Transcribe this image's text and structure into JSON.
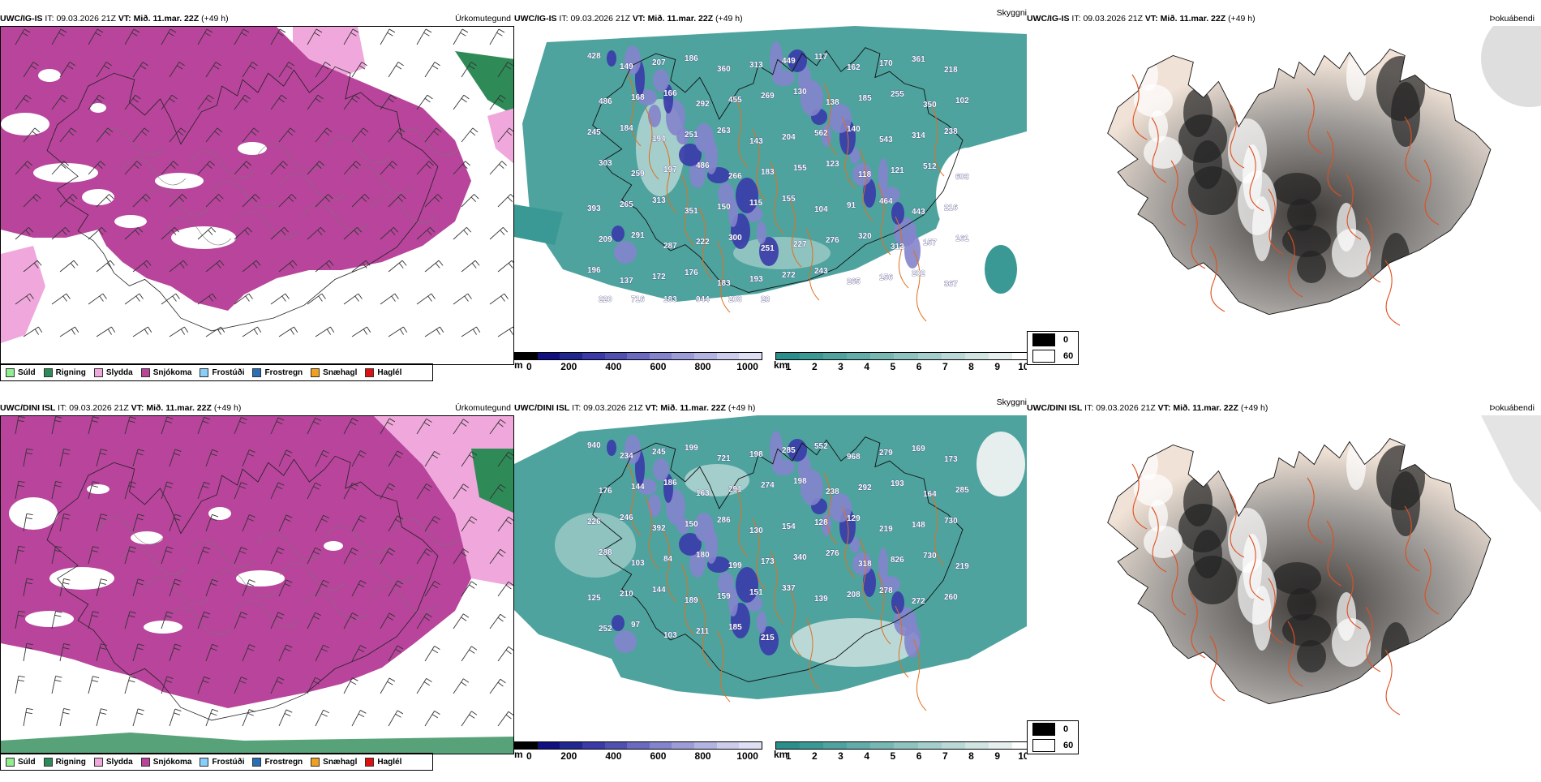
{
  "rows": [
    {
      "model": "UWC/IG-IS",
      "it_label": "IT:",
      "it_value": "09.03.2026 21Z",
      "vt_label": "VT:",
      "vt_value": "Mið. 11.mar. 22Z",
      "lead": "(+49 h)",
      "precip_title": "Úrkomutegund",
      "vis_title": "Skyggni",
      "fog_title": "Þokuábendi",
      "vis_labels": [
        "428",
        "149",
        "207",
        "186",
        "360",
        "313",
        "449",
        "117",
        "162",
        "170",
        "361",
        "218",
        "486",
        "168",
        "166",
        "292",
        "455",
        "269",
        "130",
        "138",
        "185",
        "255",
        "350",
        "102",
        "245",
        "184",
        "194",
        "251",
        "263",
        "143",
        "204",
        "562",
        "140",
        "543",
        "314",
        "238",
        "303",
        "259",
        "197",
        "486",
        "266",
        "183",
        "155",
        "123",
        "118",
        "121",
        "512",
        "603",
        "393",
        "265",
        "313",
        "351",
        "150",
        "115",
        "155",
        "104",
        "91",
        "464",
        "443",
        "216",
        "209",
        "291",
        "287",
        "222",
        "300",
        "251",
        "227",
        "276",
        "320",
        "312",
        "157",
        "161",
        "196",
        "137",
        "172",
        "176",
        "183",
        "193",
        "272",
        "243",
        "265",
        "156",
        "202",
        "367",
        "220",
        "716",
        "183",
        "944",
        "203",
        "28"
      ],
      "fog_levels": []
    },
    {
      "model": "UWC/DINI ISL",
      "it_label": "IT:",
      "it_value": "09.03.2026 21Z",
      "vt_label": "VT:",
      "vt_value": "Mið. 11.mar. 22Z",
      "lead": "(+49 h)",
      "precip_title": "Úrkomutegund",
      "vis_title": "Skyggni",
      "fog_title": "Þokuábendi",
      "vis_labels": [
        "940",
        "234",
        "245",
        "199",
        "721",
        "198",
        "285",
        "552",
        "968",
        "279",
        "169",
        "173",
        "176",
        "144",
        "186",
        "163",
        "291",
        "274",
        "198",
        "238",
        "292",
        "193",
        "164",
        "285",
        "226",
        "246",
        "392",
        "150",
        "286",
        "130",
        "154",
        "128",
        "129",
        "219",
        "148",
        "730",
        "288",
        "103",
        "84",
        "180",
        "199",
        "173",
        "340",
        "276",
        "318",
        "826",
        "730",
        "219",
        "125",
        "210",
        "144",
        "189",
        "159",
        "151",
        "337",
        "139",
        "208",
        "278",
        "272",
        "260",
        "252",
        "97",
        "103",
        "211",
        "185",
        "215"
      ],
      "fog_levels": []
    }
  ],
  "precip_legend": [
    {
      "label": "Súld",
      "color": "#90ee90"
    },
    {
      "label": "Rigning",
      "color": "#2e8b57"
    },
    {
      "label": "Slydda",
      "color": "#f0a8dc"
    },
    {
      "label": "Snjókoma",
      "color": "#b8449c"
    },
    {
      "label": "Frostúði",
      "color": "#87cefa"
    },
    {
      "label": "Frostregn",
      "color": "#2a6fb5"
    },
    {
      "label": "Snæhagl",
      "color": "#f0a020"
    },
    {
      "label": "Haglél",
      "color": "#e01010"
    }
  ],
  "ceiling_bar": {
    "unit": "m",
    "ticks": [
      "0",
      "200",
      "400",
      "600",
      "800",
      "1000"
    ],
    "colors": [
      "#000000",
      "#101080",
      "#202890",
      "#3a3aa8",
      "#5050b0",
      "#6a6ac0",
      "#8484cc",
      "#9c9cd8",
      "#b4b4e2",
      "#ccccec",
      "#dedef4"
    ]
  },
  "vis_bar": {
    "unit": "km",
    "ticks": [
      "1",
      "2",
      "3",
      "4",
      "5",
      "6",
      "7",
      "8",
      "9",
      "10"
    ],
    "colors": [
      "#2a8f8a",
      "#3a9994",
      "#4ea39e",
      "#62ada9",
      "#78b8b4",
      "#8ec3bf",
      "#a4cecb",
      "#bad9d6",
      "#d0e4e2",
      "#e6efee",
      "#ffffff"
    ]
  },
  "cloud_key": [
    {
      "label": "0",
      "color": "#000000"
    },
    {
      "label": "60",
      "color": "#ffffff"
    }
  ]
}
